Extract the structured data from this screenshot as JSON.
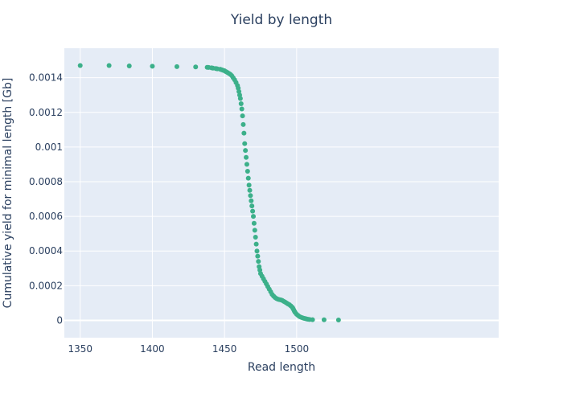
{
  "chart_data": {
    "type": "scatter",
    "title": "Yield by length",
    "xlabel": "Read length",
    "ylabel": "Cumulative yield for minimal length [Gb]",
    "xlim": [
      1339,
      1640
    ],
    "ylim": [
      -0.0001,
      0.00157
    ],
    "x_ticks": [
      1350,
      1400,
      1450,
      1500
    ],
    "y_ticks": [
      0,
      0.0002,
      0.0004,
      0.0006,
      0.0008,
      0.001,
      0.0012,
      0.0014
    ],
    "y_tick_labels": [
      "0",
      "0.0002",
      "0.0004",
      "0.0006",
      "0.0008",
      "0.001",
      "0.0012",
      "0.0014"
    ],
    "grid": true,
    "legend": "none",
    "colors": {
      "plot_bg": "#e5ecf6",
      "grid": "#ffffff",
      "marker": "#3cb08a",
      "text": "#2a3f5f"
    },
    "series": [
      {
        "x": [
          1350,
          1370,
          1384,
          1400,
          1417,
          1430,
          1438,
          1439,
          1441,
          1442,
          1444,
          1445,
          1447,
          1448,
          1449,
          1450,
          1451,
          1452,
          1453,
          1454,
          1455,
          1456,
          1457,
          1458,
          1459,
          1459.5,
          1460,
          1460.5,
          1461,
          1461.5,
          1462,
          1462.5,
          1463,
          1463.5,
          1464,
          1464.5,
          1465,
          1465.5,
          1466,
          1466.5,
          1467,
          1467.5,
          1468,
          1468.5,
          1469,
          1469.5,
          1470,
          1470.5,
          1471,
          1471.5,
          1472,
          1472.5,
          1473,
          1473.5,
          1474,
          1474.5,
          1475,
          1476,
          1477,
          1478,
          1479,
          1480,
          1481,
          1482,
          1483,
          1484,
          1485,
          1486,
          1487,
          1488,
          1489,
          1490,
          1491,
          1492,
          1493,
          1494,
          1495,
          1496,
          1497,
          1497.5,
          1498,
          1498.5,
          1499,
          1500,
          1501,
          1502,
          1503,
          1504,
          1505,
          1506,
          1507,
          1508,
          1509,
          1511,
          1519,
          1529
        ],
        "y": [
          0.00147,
          0.00147,
          0.001468,
          0.001466,
          0.001464,
          0.001462,
          0.00146,
          0.001459,
          0.001457,
          0.001455,
          0.001453,
          0.001451,
          0.001449,
          0.001446,
          0.001443,
          0.00144,
          0.001435,
          0.00143,
          0.001425,
          0.00142,
          0.001412,
          0.0014,
          0.001388,
          0.001372,
          0.001355,
          0.00134,
          0.00132,
          0.0013,
          0.00128,
          0.00125,
          0.00122,
          0.00118,
          0.00113,
          0.00108,
          0.00102,
          0.00098,
          0.00094,
          0.0009,
          0.00086,
          0.00082,
          0.00078,
          0.00075,
          0.00072,
          0.00069,
          0.00066,
          0.00063,
          0.0006,
          0.00056,
          0.00052,
          0.00048,
          0.00044,
          0.0004,
          0.00037,
          0.00034,
          0.00031,
          0.00029,
          0.00027,
          0.000255,
          0.00024,
          0.000225,
          0.00021,
          0.000195,
          0.00018,
          0.000165,
          0.00015,
          0.00014,
          0.000132,
          0.000126,
          0.000122,
          0.00012,
          0.000118,
          0.000115,
          0.00011,
          0.000105,
          0.0001,
          9.5e-05,
          9e-05,
          8.3e-05,
          7.5e-05,
          6.8e-05,
          6e-05,
          5.2e-05,
          4.5e-05,
          3.5e-05,
          2.8e-05,
          2.2e-05,
          1.8e-05,
          1.5e-05,
          1.2e-05,
          1e-05,
          8e-06,
          6e-06,
          5e-06,
          4e-06,
          3e-06,
          2e-06
        ]
      }
    ]
  }
}
